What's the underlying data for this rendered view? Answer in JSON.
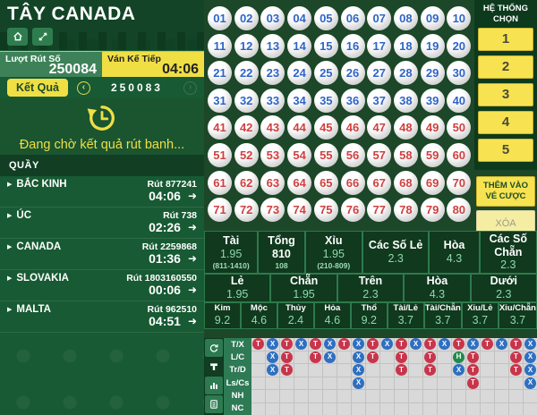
{
  "colors": {
    "accent_yellow": "#f0df44",
    "ball_blue_text": "#2e64c8",
    "ball_red_text": "#d04040",
    "dot_T": "#c8354a",
    "dot_X": "#2f6fc1",
    "dot_H": "#1f8a4c",
    "panel_green": "#175a33"
  },
  "header": {
    "title": "TÂY CANADA",
    "icons": [
      "home-icon",
      "expand-icon"
    ]
  },
  "draw_info": {
    "round_label": "Lượt Rút Số",
    "round_value": "250084",
    "next_label": "Ván Kế Tiếp",
    "next_value": "04:06"
  },
  "results_bar": {
    "button_label": "Kết Quả",
    "current_result": "250083",
    "prev_icon": "‹",
    "next_icon": "›"
  },
  "waiting": {
    "message": "Đang chờ kết quả rút banh...",
    "icon": "history-clock-icon"
  },
  "lobby": {
    "header": "QUẦY",
    "items": [
      {
        "name": "BẮC KINH",
        "draw": "Rút 877241",
        "time": "04:06"
      },
      {
        "name": "ÚC",
        "draw": "Rút 738",
        "time": "02:26"
      },
      {
        "name": "CANADA",
        "draw": "Rút 2259868",
        "time": "01:36"
      },
      {
        "name": "SLOVAKIA",
        "draw": "Rút 1803160550",
        "time": "00:06"
      },
      {
        "name": "MALTA",
        "draw": "Rút 962510",
        "time": "04:51"
      }
    ]
  },
  "ball_grid": {
    "count": 80,
    "blue_up_to": 40,
    "columns": 10
  },
  "selection_panel": {
    "header": "HỆ THỐNG CHỌN",
    "options": [
      "1",
      "2",
      "3",
      "4",
      "5"
    ],
    "add_button": "THÊM VÀO VÉ CƯỢC",
    "clear_button": "XÓA"
  },
  "odds": {
    "row1": [
      {
        "label": "Tài",
        "value": "1.95",
        "sub": "(811-1410)"
      },
      {
        "label": "Tổng",
        "value": "810",
        "sub": "108",
        "emphasis": true
      },
      {
        "label": "Xỉu",
        "value": "1.95",
        "sub": "(210-809)"
      },
      {
        "label": "Các Số Lẻ",
        "value": "2.3"
      },
      {
        "label": "Hòa",
        "value": "4.3"
      },
      {
        "label": "Các Số Chẵn",
        "value": "2.3"
      }
    ],
    "row2": [
      {
        "label": "Lẻ",
        "value": "1.95"
      },
      {
        "label": "Chẵn",
        "value": "1.95"
      },
      {
        "label": "Trên",
        "value": "2.3"
      },
      {
        "label": "Hòa",
        "value": "4.3"
      },
      {
        "label": "Dưới",
        "value": "2.3"
      }
    ],
    "row3": [
      {
        "label": "Kim",
        "value": "9.2"
      },
      {
        "label": "Mộc",
        "value": "4.6"
      },
      {
        "label": "Thủy",
        "value": "2.4"
      },
      {
        "label": "Hỏa",
        "value": "4.6"
      },
      {
        "label": "Thổ",
        "value": "9.2"
      },
      {
        "label": "Tài/Lẻ",
        "value": "3.7"
      },
      {
        "label": "Tài/Chẵn",
        "value": "3.7"
      },
      {
        "label": "Xỉu/Lẻ",
        "value": "3.7"
      },
      {
        "label": "Xỉu/Chẵn",
        "value": "3.7"
      }
    ]
  },
  "history": {
    "sidebar_icons": [
      "refresh-icon",
      "trend-icon",
      "chart-icon",
      "report-icon"
    ],
    "active_icon": "trend-icon",
    "columns": 20,
    "rows": [
      {
        "label": "T/X",
        "cells": [
          "T",
          "X",
          "T",
          "X",
          "T",
          "X",
          "T",
          "X",
          "T",
          "X",
          "T",
          "X",
          "T",
          "X",
          "T",
          "X",
          "T",
          "X",
          "T",
          "X"
        ]
      },
      {
        "label": "L/C",
        "cells": [
          "",
          "X",
          "T",
          "",
          "T",
          "X",
          "",
          "X",
          "T",
          "",
          "T",
          "",
          "T",
          "",
          "H",
          "T",
          "",
          "",
          "T",
          "X"
        ]
      },
      {
        "label": "Tr/D",
        "cells": [
          "",
          "X",
          "T",
          "",
          "",
          "",
          "",
          "X",
          "",
          "",
          "T",
          "",
          "T",
          "",
          "X",
          "T",
          "",
          "",
          "T",
          "X"
        ]
      },
      {
        "label": "Ls/Cs",
        "cells": [
          "",
          "",
          "",
          "",
          "",
          "",
          "",
          "X",
          "",
          "",
          "",
          "",
          "",
          "",
          "",
          "T",
          "",
          "",
          "",
          "X"
        ]
      },
      {
        "label": "NH",
        "cells": [
          "",
          "",
          "",
          "",
          "",
          "",
          "",
          "",
          "",
          "",
          "",
          "",
          "",
          "",
          "",
          "",
          "",
          "",
          "",
          ""
        ]
      },
      {
        "label": "NC",
        "cells": [
          "",
          "",
          "",
          "",
          "",
          "",
          "",
          "",
          "",
          "",
          "",
          "",
          "",
          "",
          "",
          "",
          "",
          "",
          "",
          ""
        ]
      }
    ]
  }
}
